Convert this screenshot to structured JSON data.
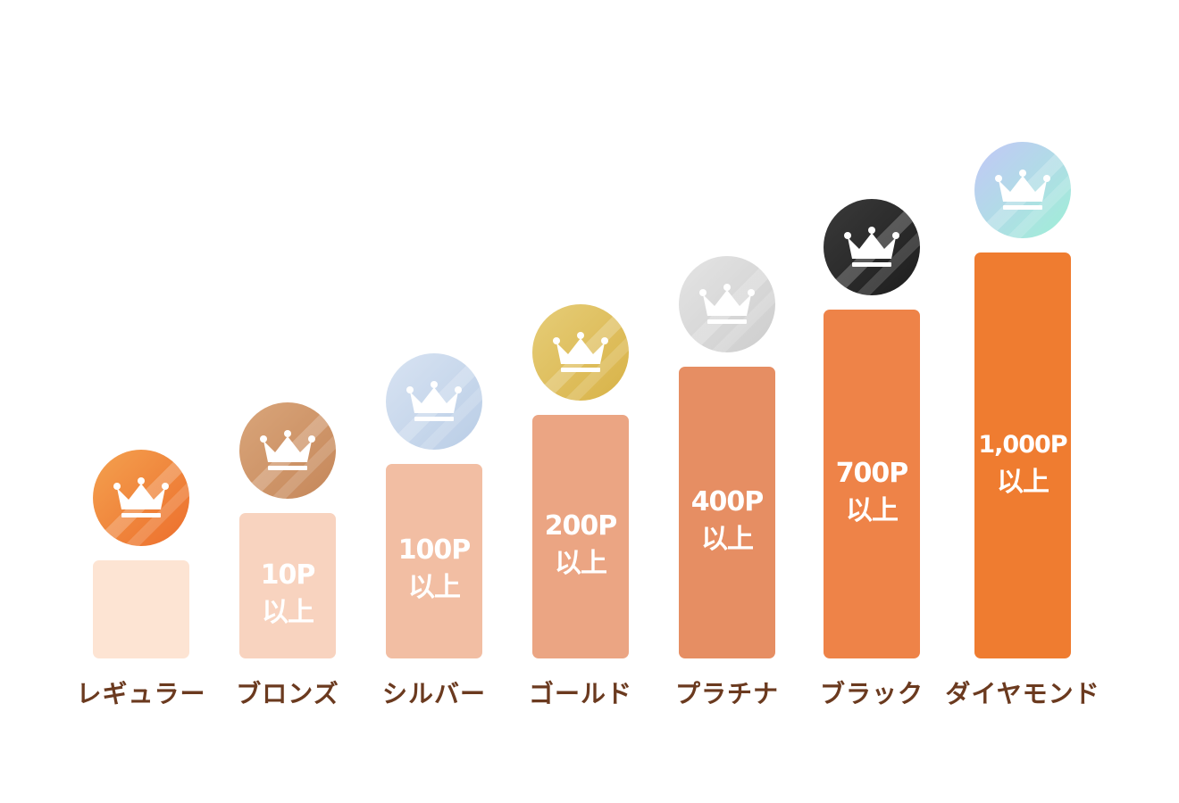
{
  "chart_data": {
    "type": "bar",
    "title": "",
    "xlabel": "",
    "ylabel": "",
    "categories": [
      "レギュラー",
      "ブロンズ",
      "シルバー",
      "ゴールド",
      "プラチナ",
      "ブラック",
      "ダイヤモンド"
    ],
    "values": [
      0,
      10,
      100,
      200,
      400,
      700,
      1000
    ],
    "bar_labels": [
      {
        "points": "",
        "suffix": ""
      },
      {
        "points": "10P",
        "suffix": "以上"
      },
      {
        "points": "100P",
        "suffix": "以上"
      },
      {
        "points": "200P",
        "suffix": "以上"
      },
      {
        "points": "400P",
        "suffix": "以上"
      },
      {
        "points": "700P",
        "suffix": "以上"
      },
      {
        "points": "1,000P",
        "suffix": "以上"
      }
    ],
    "bar_colors": [
      "#fde4d3",
      "#f8d3bf",
      "#f2bea3",
      "#eba583",
      "#e68e63",
      "#ee8348",
      "#ef7c30"
    ],
    "badge_icons": [
      "crown-icon",
      "crown-icon",
      "crown-icon",
      "crown-icon",
      "crown-icon",
      "crown-icon",
      "crown-icon"
    ],
    "badge_colors": [
      [
        "#f4a14f",
        "#ec6e2c"
      ],
      [
        "#d9a57a",
        "#c5875a"
      ],
      [
        "#d8e3f2",
        "#b9cde6"
      ],
      [
        "#e6cd78",
        "#d8b247"
      ],
      [
        "#e4e4e4",
        "#cdcdcd"
      ],
      [
        "#3a3a3a",
        "#1d1d1d"
      ],
      [
        "#c3c7f7",
        "#9ef0d6"
      ]
    ],
    "label_color": "#6b3a1f"
  }
}
